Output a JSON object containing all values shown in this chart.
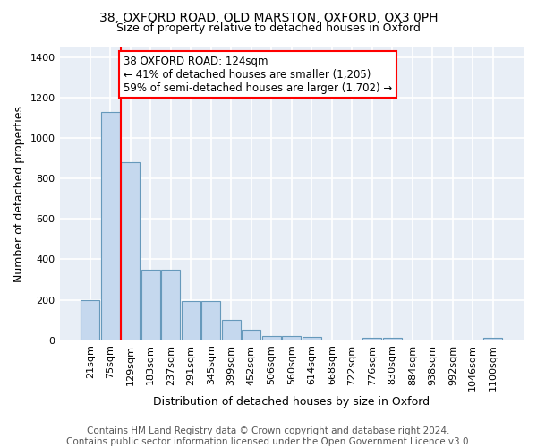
{
  "title1": "38, OXFORD ROAD, OLD MARSTON, OXFORD, OX3 0PH",
  "title2": "Size of property relative to detached houses in Oxford",
  "xlabel": "Distribution of detached houses by size in Oxford",
  "ylabel": "Number of detached properties",
  "categories": [
    "21sqm",
    "75sqm",
    "129sqm",
    "183sqm",
    "237sqm",
    "291sqm",
    "345sqm",
    "399sqm",
    "452sqm",
    "506sqm",
    "560sqm",
    "614sqm",
    "668sqm",
    "722sqm",
    "776sqm",
    "830sqm",
    "884sqm",
    "938sqm",
    "992sqm",
    "1046sqm",
    "1100sqm"
  ],
  "values": [
    200,
    1130,
    880,
    350,
    350,
    195,
    195,
    100,
    52,
    22,
    20,
    15,
    0,
    0,
    13,
    13,
    0,
    0,
    0,
    0,
    13
  ],
  "bar_color": "#c5d8ee",
  "bar_edge_color": "#6699bb",
  "property_line_bin": 1,
  "annotation_line1": "38 OXFORD ROAD: 124sqm",
  "annotation_line2": "← 41% of detached houses are smaller (1,205)",
  "annotation_line3": "59% of semi-detached houses are larger (1,702) →",
  "footnote": "Contains HM Land Registry data © Crown copyright and database right 2024.\nContains public sector information licensed under the Open Government Licence v3.0.",
  "ylim": [
    0,
    1450
  ],
  "yticks": [
    0,
    200,
    400,
    600,
    800,
    1000,
    1200,
    1400
  ],
  "background_color": "#e8eef6",
  "grid_color": "#ffffff",
  "title1_fontsize": 10,
  "title2_fontsize": 9,
  "xlabel_fontsize": 9,
  "ylabel_fontsize": 9,
  "annotation_fontsize": 8.5,
  "footnote_fontsize": 7.5,
  "tick_fontsize": 8
}
